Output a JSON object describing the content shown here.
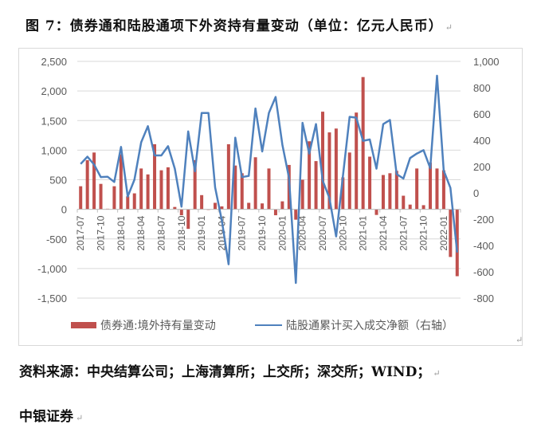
{
  "title": "图 7：债券通和陆股通项下外资持有量变动（单位：亿元人民币）",
  "source_line1": "资料来源：中央结算公司；上海清算所；上交所；深交所；WIND；",
  "source_line2": "中银证券",
  "return_mark": "↵",
  "colors": {
    "bar": "#C0504D",
    "line": "#4F81BD",
    "grid": "#d9d9d9"
  },
  "chart_data": {
    "type": "bar+line",
    "title": "",
    "categories": [
      "2017-07",
      "2017-08",
      "2017-09",
      "2017-10",
      "2017-11",
      "2017-12",
      "2018-01",
      "2018-02",
      "2018-03",
      "2018-04",
      "2018-05",
      "2018-06",
      "2018-07",
      "2018-08",
      "2018-09",
      "2018-10",
      "2018-11",
      "2018-12",
      "2019-01",
      "2019-02",
      "2019-03",
      "2019-04",
      "2019-05",
      "2019-06",
      "2019-07",
      "2019-08",
      "2019-09",
      "2019-10",
      "2019-11",
      "2019-12",
      "2020-01",
      "2020-02",
      "2020-03",
      "2020-04",
      "2020-05",
      "2020-06",
      "2020-07",
      "2020-08",
      "2020-09",
      "2020-10",
      "2020-11",
      "2020-12",
      "2021-01",
      "2021-02",
      "2021-03",
      "2021-04",
      "2021-05",
      "2021-06",
      "2021-07",
      "2021-08",
      "2021-09",
      "2021-10",
      "2021-11",
      "2021-12",
      "2022-01",
      "2022-02",
      "2022-03"
    ],
    "tick_labels": [
      "2017-07",
      "2017-10",
      "2018-01",
      "2018-04",
      "2018-07",
      "2018-10",
      "2019-01",
      "2019-04",
      "2019-07",
      "2019-10",
      "2020-01",
      "2020-04",
      "2020-07",
      "2020-10",
      "2021-01",
      "2021-04",
      "2021-07",
      "2021-10",
      "2022-01"
    ],
    "series": [
      {
        "name": "债券通:境外持有量变动",
        "type": "bar",
        "axis": "left",
        "values": [
          390,
          830,
          960,
          430,
          10,
          390,
          930,
          220,
          270,
          690,
          590,
          1100,
          660,
          710,
          40,
          -100,
          -330,
          830,
          240,
          -10,
          110,
          50,
          1100,
          740,
          610,
          110,
          880,
          100,
          690,
          -100,
          135,
          750,
          -175,
          500,
          1150,
          815,
          1650,
          1300,
          1365,
          540,
          960,
          1635,
          2235,
          890,
          -95,
          580,
          610,
          650,
          230,
          80,
          690,
          70,
          790,
          690,
          660,
          -805,
          -1130
        ]
      },
      {
        "name": "陆股通累计买入成交净额（右轴）",
        "type": "line",
        "axis": "right",
        "values": [
          220,
          275,
          215,
          120,
          123,
          83,
          350,
          -28,
          100,
          385,
          507,
          285,
          285,
          355,
          184,
          -105,
          467,
          164,
          608,
          608,
          42,
          -210,
          -543,
          420,
          120,
          129,
          642,
          315,
          608,
          729,
          366,
          113,
          -685,
          533,
          299,
          523,
          93,
          -38,
          -331,
          123,
          578,
          572,
          396,
          406,
          184,
          523,
          554,
          143,
          109,
          265,
          299,
          325,
          188,
          891,
          170,
          38,
          -453
        ]
      }
    ],
    "left_axis": {
      "ylim": [
        -1500,
        2500
      ],
      "ticks": [
        "2,500",
        "2,000",
        "1,500",
        "1,000",
        "500",
        "0",
        "-500",
        "-1,000",
        "-1,500"
      ],
      "tick_values": [
        2500,
        2000,
        1500,
        1000,
        500,
        0,
        -500,
        -1000,
        -1500
      ]
    },
    "right_axis": {
      "ylim": [
        -800,
        1000
      ],
      "ticks": [
        "1,000",
        "800",
        "600",
        "400",
        "200",
        "0",
        "-200",
        "-400",
        "-600",
        "-800"
      ],
      "tick_values": [
        1000,
        800,
        600,
        400,
        200,
        0,
        -200,
        -400,
        -600,
        -800
      ]
    },
    "grid": true,
    "legend_position": "bottom"
  }
}
